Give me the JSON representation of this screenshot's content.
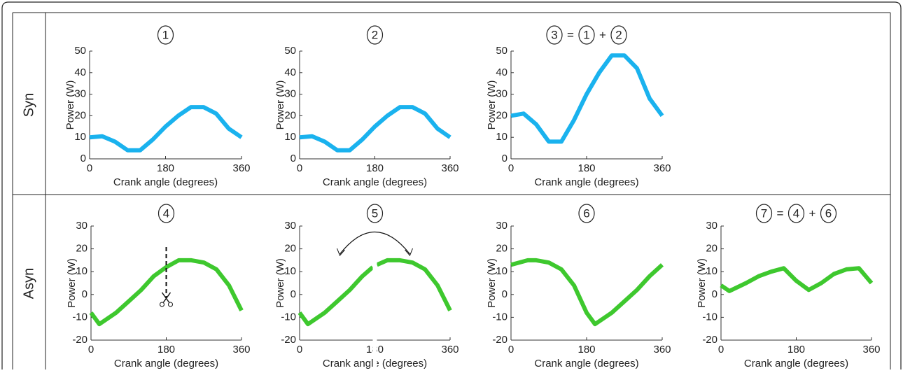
{
  "rows": [
    "Syn",
    "Asyn"
  ],
  "chart_data": [
    {
      "type": "line",
      "title": [
        "1"
      ],
      "xlabel": "Crank angle (degrees)",
      "ylabel": "Power (W)",
      "xlim": [
        0,
        360
      ],
      "ylim": [
        0,
        50
      ],
      "xticks": [
        0,
        180,
        360
      ],
      "yticks": [
        0,
        10,
        20,
        30,
        40,
        50
      ],
      "x": [
        0,
        30,
        60,
        90,
        120,
        150,
        180,
        210,
        240,
        270,
        300,
        330,
        360
      ],
      "series": [
        {
          "color": "#1ab2ee",
          "values": [
            10,
            10.5,
            8,
            4,
            4,
            9,
            15,
            20,
            24,
            24,
            21,
            14,
            10
          ]
        }
      ]
    },
    {
      "type": "line",
      "title": [
        "2"
      ],
      "xlabel": "Crank angle (degrees)",
      "ylabel": "Power (W)",
      "xlim": [
        0,
        360
      ],
      "ylim": [
        0,
        50
      ],
      "xticks": [
        0,
        180,
        360
      ],
      "yticks": [
        0,
        10,
        20,
        30,
        40,
        50
      ],
      "x": [
        0,
        30,
        60,
        90,
        120,
        150,
        180,
        210,
        240,
        270,
        300,
        330,
        360
      ],
      "series": [
        {
          "color": "#1ab2ee",
          "values": [
            10,
            10.5,
            8,
            4,
            4,
            9,
            15,
            20,
            24,
            24,
            21,
            14,
            10
          ]
        }
      ]
    },
    {
      "type": "line",
      "title": [
        "3",
        "=",
        "1",
        "+",
        "2"
      ],
      "xlabel": "Crank angle (degrees)",
      "ylabel": "Power (W)",
      "xlim": [
        0,
        360
      ],
      "ylim": [
        0,
        50
      ],
      "xticks": [
        0,
        180,
        360
      ],
      "yticks": [
        0,
        10,
        20,
        30,
        40,
        50
      ],
      "x": [
        0,
        30,
        60,
        90,
        120,
        150,
        180,
        210,
        240,
        270,
        300,
        330,
        360
      ],
      "series": [
        {
          "color": "#1ab2ee",
          "values": [
            20,
            21,
            16,
            8,
            8,
            18,
            30,
            40,
            48,
            48,
            42,
            28,
            20
          ]
        }
      ]
    },
    {
      "type": "line",
      "title": [
        "4"
      ],
      "xlabel": "Crank angle (degrees)",
      "ylabel": "Power (W)",
      "xlim": [
        0,
        360
      ],
      "ylim": [
        -20,
        30
      ],
      "xticks": [
        0,
        180,
        360
      ],
      "yticks": [
        -20,
        -10,
        0,
        10,
        20,
        30
      ],
      "x": [
        0,
        20,
        60,
        90,
        120,
        150,
        180,
        210,
        240,
        270,
        300,
        330,
        360
      ],
      "series": [
        {
          "color": "#3ec82e",
          "values": [
            -8,
            -13,
            -8,
            -3,
            2,
            8,
            12,
            15,
            15,
            14,
            11,
            4,
            -7
          ]
        }
      ]
    },
    {
      "type": "line",
      "title": [
        "5"
      ],
      "xlabel": "Crank angle (degrees)",
      "ylabel": "Power (W)",
      "xlim": [
        0,
        360
      ],
      "ylim": [
        -20,
        30
      ],
      "xticks": [
        0,
        180,
        360
      ],
      "yticks": [
        -20,
        -10,
        0,
        10,
        20,
        30
      ],
      "x": [
        0,
        20,
        60,
        90,
        120,
        150,
        175,
        180,
        185,
        210,
        240,
        270,
        300,
        330,
        360
      ],
      "series": [
        {
          "color": "#3ec82e",
          "values": [
            -8,
            -13,
            -8,
            -3,
            2,
            8,
            12,
            null,
            13,
            15,
            15,
            14,
            11,
            4,
            -7
          ]
        }
      ]
    },
    {
      "type": "line",
      "title": [
        "6"
      ],
      "xlabel": "Crank angle (degrees)",
      "ylabel": "Power (W)",
      "xlim": [
        0,
        360
      ],
      "ylim": [
        -20,
        30
      ],
      "xticks": [
        0,
        180,
        360
      ],
      "yticks": [
        -20,
        -10,
        0,
        10,
        20,
        30
      ],
      "x": [
        0,
        40,
        60,
        90,
        120,
        150,
        180,
        200,
        240,
        270,
        300,
        330,
        360
      ],
      "series": [
        {
          "color": "#3ec82e",
          "values": [
            13,
            15,
            15,
            14,
            11,
            4,
            -8,
            -13,
            -8,
            -3,
            2,
            8,
            13
          ]
        }
      ]
    },
    {
      "type": "line",
      "title": [
        "7",
        "=",
        "4",
        "+",
        "6"
      ],
      "xlabel": "Crank angle (degrees)",
      "ylabel": "Power (W)",
      "xlim": [
        0,
        360
      ],
      "ylim": [
        -20,
        30
      ],
      "xticks": [
        0,
        180,
        360
      ],
      "yticks": [
        -20,
        -10,
        0,
        10,
        20,
        30
      ],
      "x": [
        0,
        20,
        60,
        90,
        120,
        150,
        180,
        210,
        240,
        270,
        300,
        330,
        360
      ],
      "series": [
        {
          "color": "#3ec82e",
          "values": [
            4,
            1.5,
            5,
            8,
            10,
            11.5,
            6,
            2,
            5,
            9,
            11,
            11.5,
            5
          ]
        }
      ]
    }
  ]
}
